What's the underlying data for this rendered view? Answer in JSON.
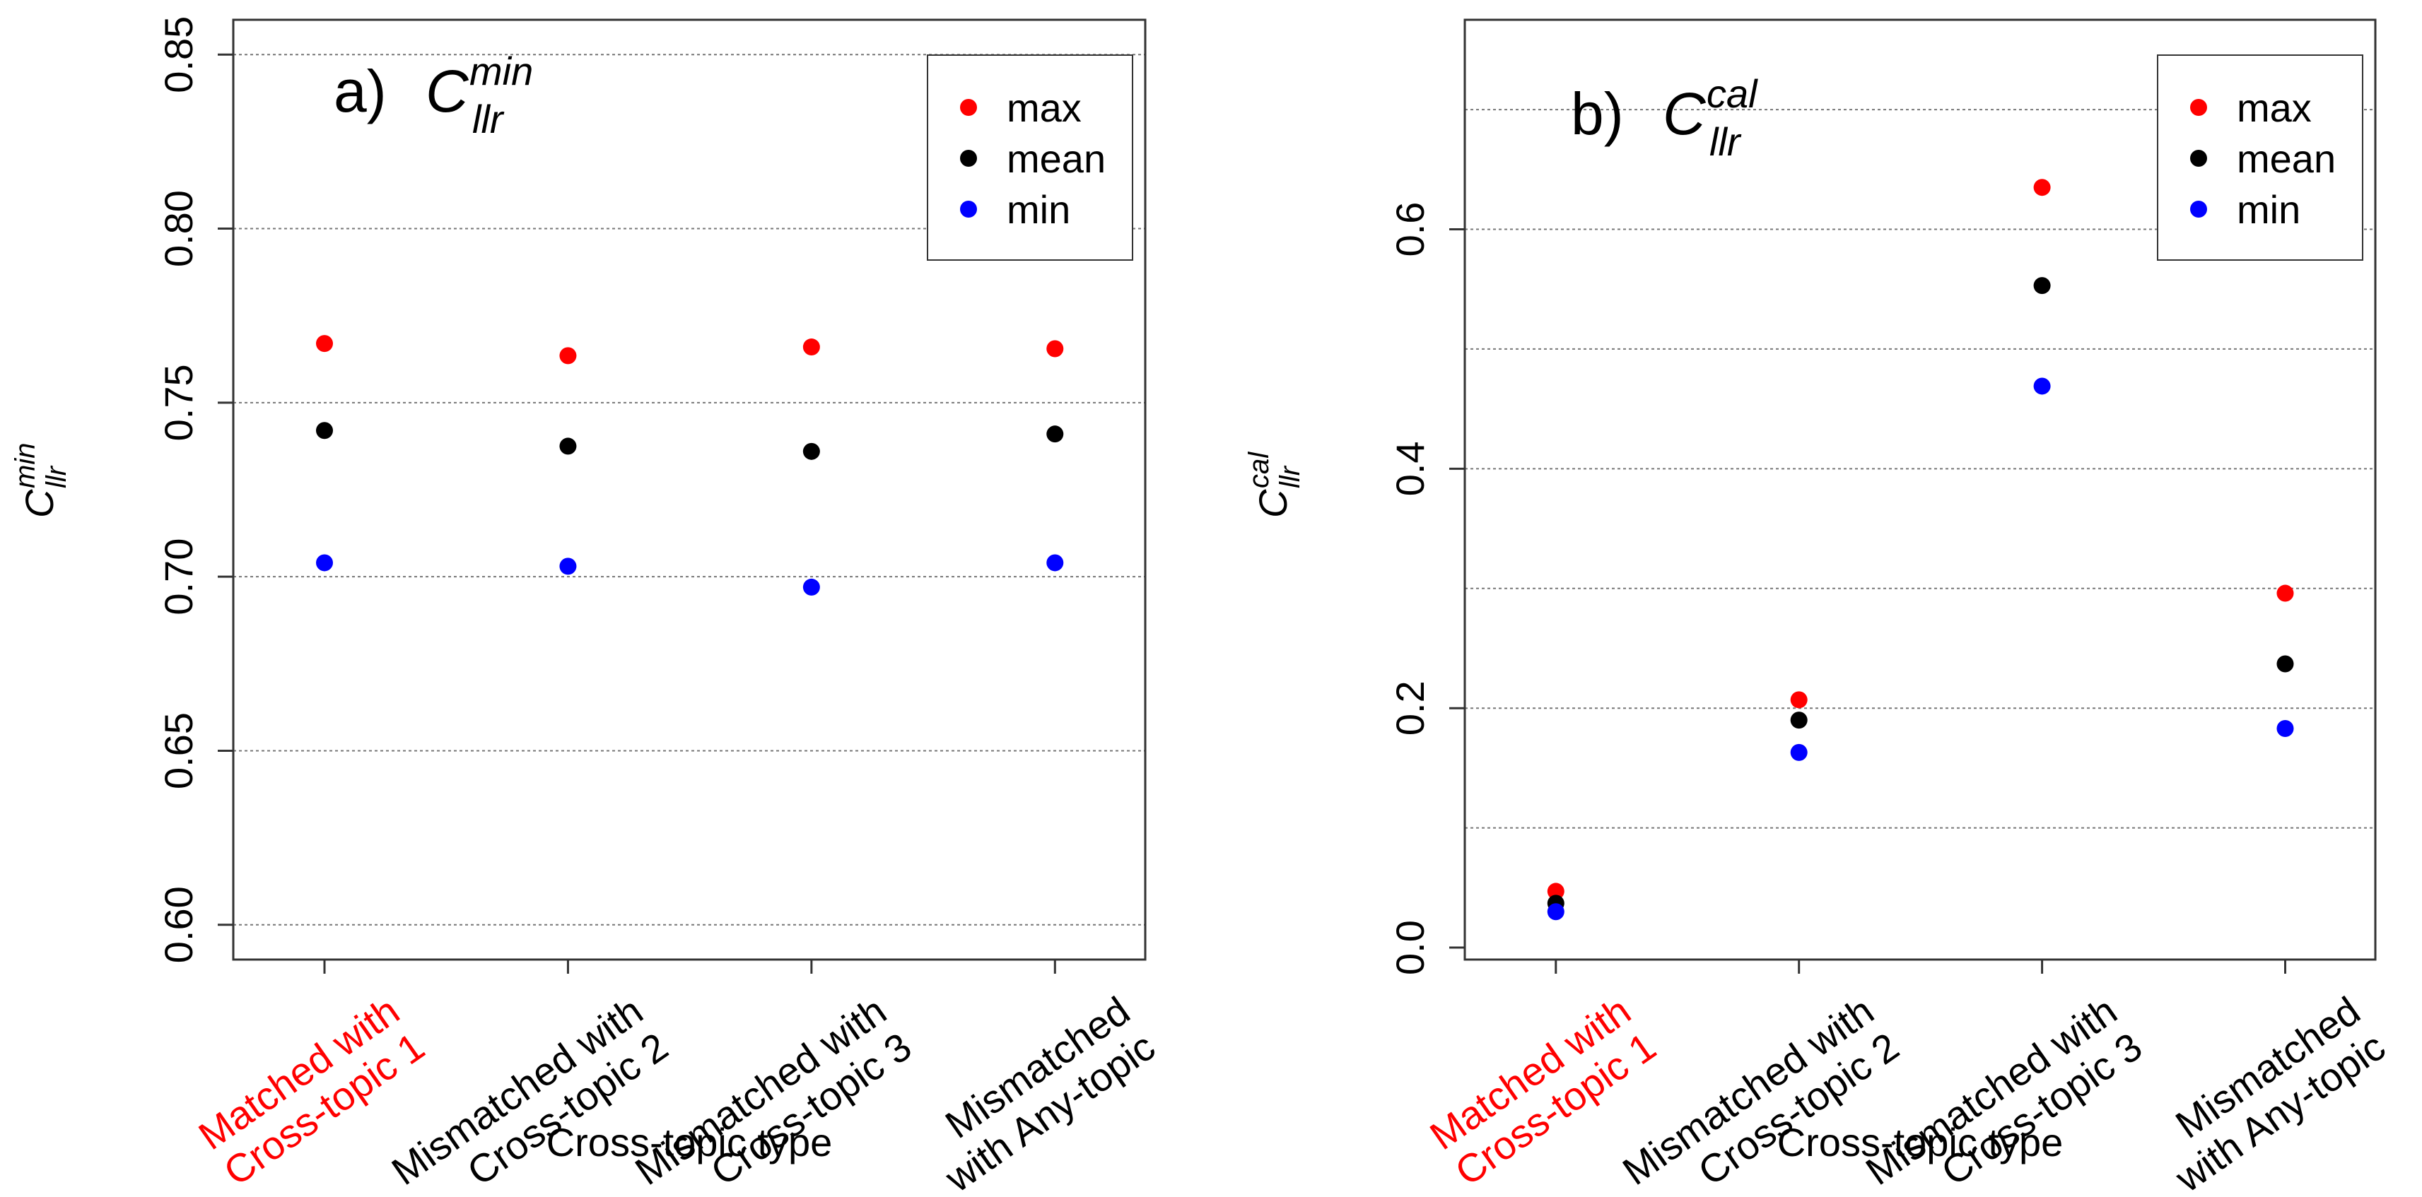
{
  "chart_data": [
    {
      "type": "scatter",
      "panel": "a)",
      "title_symbol": "C",
      "title_sup": "min",
      "title_sub": "llr",
      "xlabel": "Cross-topic type",
      "ylabel_symbol": "C",
      "ylabel_sup": "min",
      "ylabel_sub": "llr",
      "ylim": [
        0.59,
        0.86
      ],
      "yticks": [
        "0.60",
        "0.65",
        "0.70",
        "0.75",
        "0.80",
        "0.85"
      ],
      "grid": true,
      "legend_position": "top-right",
      "categories": [
        {
          "lines": [
            "Matched with",
            "Cross-topic 1"
          ],
          "color": "#ff0000"
        },
        {
          "lines": [
            "Mismatched with",
            "Cross-topic 2"
          ],
          "color": "#000000"
        },
        {
          "lines": [
            "Mismatched with",
            "Cross-topic 3"
          ],
          "color": "#000000"
        },
        {
          "lines": [
            "Mismatched",
            "with Any-topic"
          ],
          "color": "#000000"
        }
      ],
      "series": [
        {
          "name": "max",
          "color": "#ff0000",
          "values": [
            0.767,
            0.7635,
            0.766,
            0.7655
          ]
        },
        {
          "name": "mean",
          "color": "#000000",
          "values": [
            0.742,
            0.7375,
            0.736,
            0.741
          ]
        },
        {
          "name": "min",
          "color": "#0000ff",
          "values": [
            0.704,
            0.703,
            0.697,
            0.704
          ]
        }
      ]
    },
    {
      "type": "scatter",
      "panel": "b)",
      "title_symbol": "C",
      "title_sup": "cal",
      "title_sub": "llr",
      "xlabel": "Cross-topic type",
      "ylabel_symbol": "C",
      "ylabel_sup": "cal",
      "ylabel_sub": "llr",
      "ylim": [
        -0.01,
        0.775
      ],
      "yticks": [
        "0.0",
        "0.2",
        "0.4",
        "0.6"
      ],
      "gridlines": [
        0.1,
        0.2,
        0.3,
        0.4,
        0.5,
        0.6,
        0.7
      ],
      "grid": true,
      "legend_position": "top-right",
      "categories": [
        {
          "lines": [
            "Matched with",
            "Cross-topic 1"
          ],
          "color": "#ff0000"
        },
        {
          "lines": [
            "Mismatched with",
            "Cross-topic 2"
          ],
          "color": "#000000"
        },
        {
          "lines": [
            "Mismatched with",
            "Cross-topic 3"
          ],
          "color": "#000000"
        },
        {
          "lines": [
            "Mismatched",
            "with Any-topic"
          ],
          "color": "#000000"
        }
      ],
      "series": [
        {
          "name": "max",
          "color": "#ff0000",
          "values": [
            0.047,
            0.207,
            0.635,
            0.296
          ]
        },
        {
          "name": "mean",
          "color": "#000000",
          "values": [
            0.037,
            0.19,
            0.553,
            0.237
          ]
        },
        {
          "name": "min",
          "color": "#0000ff",
          "values": [
            0.03,
            0.163,
            0.469,
            0.183
          ]
        }
      ]
    }
  ]
}
